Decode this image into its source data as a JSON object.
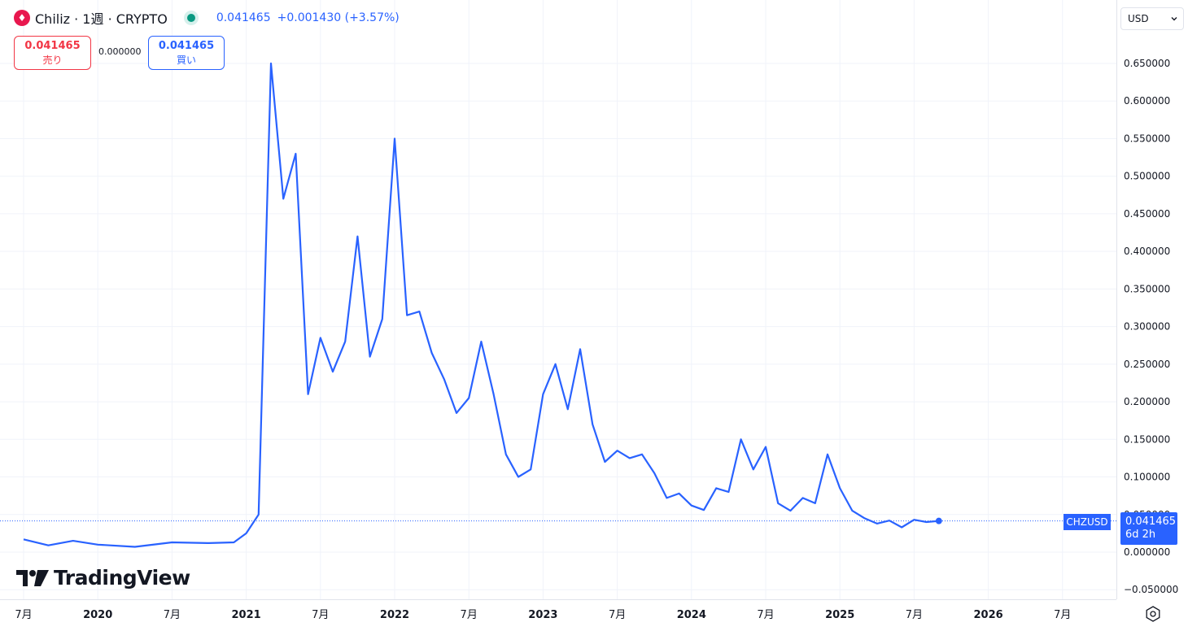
{
  "header": {
    "symbol_icon": "chiliz-logo-icon",
    "symbol_title": "Chiliz · 1週 · CRYPTO",
    "status": "market-open-dot",
    "last_price": "0.041465",
    "change": "+0.001430 (+3.57%)"
  },
  "trade": {
    "sell_price": "0.041465",
    "sell_label": "売り",
    "spread": "0.000000",
    "buy_price": "0.041465",
    "buy_label": "買い"
  },
  "currency": {
    "value": "USD",
    "icon": "chevron-down-icon"
  },
  "branding": {
    "logo_text": "TradingView",
    "logo_icon": "tradingview-logo-icon"
  },
  "price_marker": {
    "ticker": "CHZUSD",
    "price": "0.041465",
    "countdown": "6d 2h"
  },
  "footer_icon": "settings-gear-icon",
  "colors": {
    "line": "#2962ff",
    "up": "#089981",
    "down": "#f23645",
    "grid": "#f0f3fa"
  },
  "chart_data": {
    "type": "line",
    "series": [
      {
        "x": [
          "2019-07",
          "2019-09",
          "2019-11",
          "2020-01",
          "2020-04",
          "2020-07",
          "2020-10",
          "2020-12",
          "2021-01",
          "2021-02",
          "2021-03",
          "2021-04",
          "2021-05",
          "2021-06",
          "2021-07",
          "2021-08",
          "2021-09",
          "2021-10",
          "2021-11",
          "2021-12",
          "2022-01",
          "2022-02",
          "2022-03",
          "2022-04",
          "2022-05",
          "2022-06",
          "2022-07",
          "2022-08",
          "2022-09",
          "2022-10",
          "2022-11",
          "2022-12",
          "2023-01",
          "2023-02",
          "2023-03",
          "2023-04",
          "2023-05",
          "2023-06",
          "2023-07",
          "2023-08",
          "2023-09",
          "2023-10",
          "2023-11",
          "2023-12",
          "2024-01",
          "2024-02",
          "2024-03",
          "2024-04",
          "2024-05",
          "2024-06",
          "2024-07",
          "2024-08",
          "2024-09",
          "2024-10",
          "2024-11",
          "2024-12",
          "2025-01",
          "2025-02",
          "2025-03",
          "2025-04",
          "2025-05",
          "2025-06",
          "2025-07",
          "2025-08",
          "2025-09"
        ],
        "values": [
          0.017,
          0.009,
          0.015,
          0.01,
          0.007,
          0.013,
          0.012,
          0.013,
          0.025,
          0.05,
          0.65,
          0.47,
          0.53,
          0.21,
          0.285,
          0.24,
          0.28,
          0.42,
          0.26,
          0.31,
          0.55,
          0.315,
          0.32,
          0.265,
          0.23,
          0.185,
          0.205,
          0.28,
          0.21,
          0.13,
          0.1,
          0.11,
          0.21,
          0.25,
          0.19,
          0.27,
          0.17,
          0.12,
          0.135,
          0.125,
          0.13,
          0.105,
          0.072,
          0.078,
          0.062,
          0.056,
          0.085,
          0.08,
          0.15,
          0.11,
          0.14,
          0.065,
          0.055,
          0.072,
          0.065,
          0.13,
          0.085,
          0.055,
          0.045,
          0.038,
          0.042,
          0.033,
          0.043,
          0.04,
          0.041465
        ]
      }
    ],
    "x_ticks": [
      "7月",
      "2020",
      "7月",
      "2021",
      "7月",
      "2022",
      "7月",
      "2023",
      "7月",
      "2024",
      "7月",
      "2025",
      "7月",
      "2026",
      "7月"
    ],
    "y_ticks": [
      "0.650000",
      "0.600000",
      "0.550000",
      "0.500000",
      "0.450000",
      "0.400000",
      "0.350000",
      "0.300000",
      "0.250000",
      "0.200000",
      "0.150000",
      "0.100000",
      "0.050000",
      "0.000000",
      "−0.050000"
    ],
    "ylim": [
      -0.05,
      0.65
    ],
    "last_value": 0.041465,
    "grid": true,
    "legend": "top-left"
  }
}
